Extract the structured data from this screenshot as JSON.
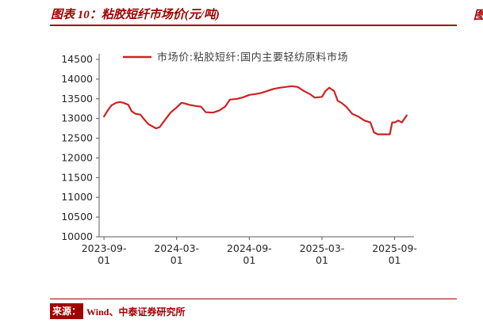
{
  "header": {
    "accent_color": "#a00000"
  },
  "footer": {
    "source_label": "来源：",
    "source_text": "Wind、中泰证券研究所"
  },
  "neighbor": {
    "fragment": "图"
  },
  "chart_data": {
    "type": "line",
    "title": "图表 10：粘胶短纤市场价(元/吨)",
    "legend": "市场价:粘胶短纤:国内主要轻纺原料市场",
    "line_color": "#cc2222",
    "axis_color": "#595959",
    "tick_label_color": "#262626",
    "legend_color": "#404040",
    "ylabel": "",
    "xlabel": "",
    "grid": false,
    "legend_position": "top-left-inside",
    "ylim": [
      10000,
      14500
    ],
    "ytick_step": 500,
    "x_unit": "months since 2023-09-01",
    "xlim": [
      -0.4,
      25.6
    ],
    "x_ticks": [
      {
        "pos": 0,
        "label": "2023-09-01"
      },
      {
        "pos": 6,
        "label": "2024-03-01"
      },
      {
        "pos": 12,
        "label": "2024-09-01"
      },
      {
        "pos": 18,
        "label": "2025-03-01"
      },
      {
        "pos": 24,
        "label": "2025-09-01"
      }
    ],
    "series": [
      {
        "name": "市场价:粘胶短纤:国内主要轻纺原料市场",
        "x": [
          0,
          0.3,
          0.6,
          1,
          1.3,
          1.6,
          2,
          2.3,
          2.6,
          3,
          3.4,
          3.7,
          4,
          4.3,
          4.6,
          5,
          5.5,
          6,
          6.4,
          6.7,
          7,
          7.5,
          8,
          8.4,
          9,
          9.5,
          10,
          10.4,
          11,
          11.5,
          12,
          12.5,
          13,
          13.5,
          14,
          14.5,
          15,
          15.5,
          16,
          16.5,
          17,
          17.4,
          18,
          18.3,
          18.6,
          19,
          19.3,
          19.6,
          20,
          20.5,
          21,
          21.5,
          22,
          22.3,
          22.6,
          23,
          23.6,
          23.8,
          24,
          24.3,
          24.6,
          25
        ],
        "y": [
          13050,
          13200,
          13330,
          13400,
          13420,
          13400,
          13350,
          13180,
          13120,
          13100,
          12950,
          12850,
          12800,
          12750,
          12780,
          12950,
          13150,
          13280,
          13400,
          13380,
          13350,
          13320,
          13300,
          13160,
          13150,
          13200,
          13300,
          13480,
          13500,
          13540,
          13600,
          13620,
          13650,
          13700,
          13750,
          13780,
          13800,
          13820,
          13800,
          13700,
          13620,
          13530,
          13550,
          13700,
          13780,
          13700,
          13450,
          13400,
          13300,
          13120,
          13050,
          12950,
          12900,
          12650,
          12600,
          12600,
          12600,
          12900,
          12900,
          12950,
          12900,
          13080
        ]
      }
    ]
  }
}
